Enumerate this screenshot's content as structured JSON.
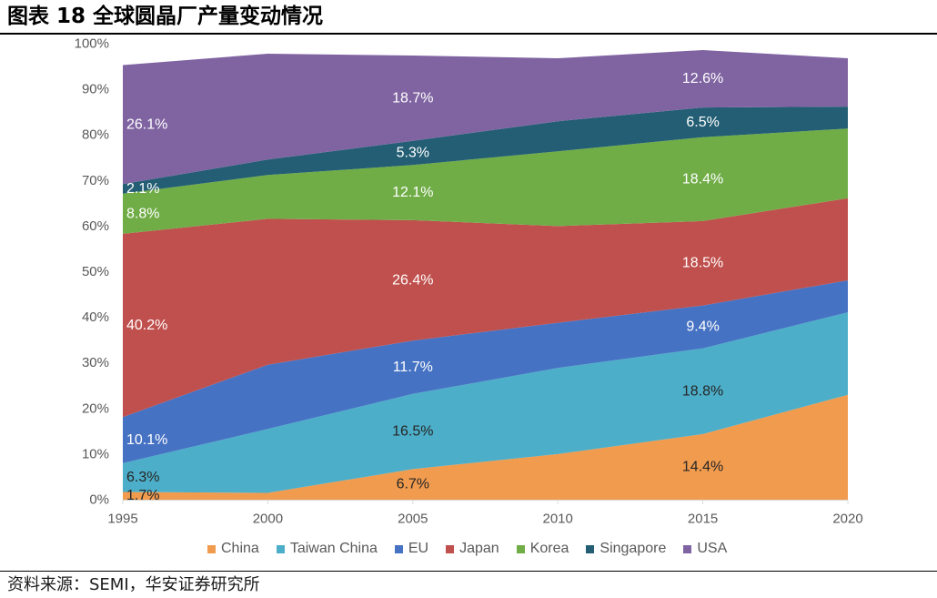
{
  "chart_data": {
    "type": "area",
    "stacked": true,
    "title": "图表 18 全球圆晶厂产量变动情况",
    "x": [
      1995,
      2000,
      2005,
      2010,
      2015,
      2020
    ],
    "ylim": [
      0,
      100
    ],
    "yticks": [
      0,
      10,
      20,
      30,
      40,
      50,
      60,
      70,
      80,
      90,
      100
    ],
    "ytick_labels": [
      "0%",
      "10%",
      "20%",
      "30%",
      "40%",
      "50%",
      "60%",
      "70%",
      "80%",
      "90%",
      "100%"
    ],
    "grid": false,
    "legend_position": "bottom",
    "series": [
      {
        "name": "China",
        "color": "#F19B4E",
        "label_color": "#262626",
        "values": [
          1.7,
          1.5,
          6.7,
          10.0,
          14.4,
          23.0
        ],
        "labels": [
          "1.7%",
          null,
          "6.7%",
          null,
          "14.4%",
          null
        ]
      },
      {
        "name": "Taiwan China",
        "color": "#4CAEC9",
        "label_color": "#262626",
        "values": [
          6.3,
          14.0,
          16.5,
          18.9,
          18.8,
          18.1
        ],
        "labels": [
          "6.3%",
          null,
          "16.5%",
          null,
          "18.8%",
          null
        ]
      },
      {
        "name": "EU",
        "color": "#4672C4",
        "label_color": "#FFFFFF",
        "values": [
          10.1,
          14.1,
          11.7,
          9.9,
          9.4,
          7.0
        ],
        "labels": [
          "10.1%",
          null,
          "11.7%",
          null,
          "9.4%",
          null
        ]
      },
      {
        "name": "Japan",
        "color": "#C0504D",
        "label_color": "#FFFFFF",
        "values": [
          40.2,
          32.0,
          26.4,
          21.2,
          18.5,
          18.0
        ],
        "labels": [
          "40.2%",
          null,
          "26.4%",
          null,
          "18.5%",
          null
        ]
      },
      {
        "name": "Korea",
        "color": "#70AD47",
        "label_color": "#FFFFFF",
        "values": [
          8.8,
          9.6,
          12.1,
          16.4,
          18.4,
          15.3
        ],
        "labels": [
          "8.8%",
          null,
          "12.1%",
          null,
          "18.4%",
          null
        ]
      },
      {
        "name": "Singapore",
        "color": "#235E74",
        "label_color": "#FFFFFF",
        "values": [
          2.1,
          3.4,
          5.3,
          6.6,
          6.5,
          4.8
        ],
        "labels": [
          "2.1%",
          null,
          "5.3%",
          null,
          "6.5%",
          null
        ]
      },
      {
        "name": "USA",
        "color": "#8064A2",
        "label_color": "#FFFFFF",
        "values": [
          26.1,
          23.2,
          18.7,
          13.8,
          12.6,
          10.6
        ],
        "labels": [
          "26.1%",
          null,
          "18.7%",
          null,
          "12.6%",
          null
        ]
      }
    ]
  },
  "source": "资料来源：SEMI，华安证券研究所"
}
